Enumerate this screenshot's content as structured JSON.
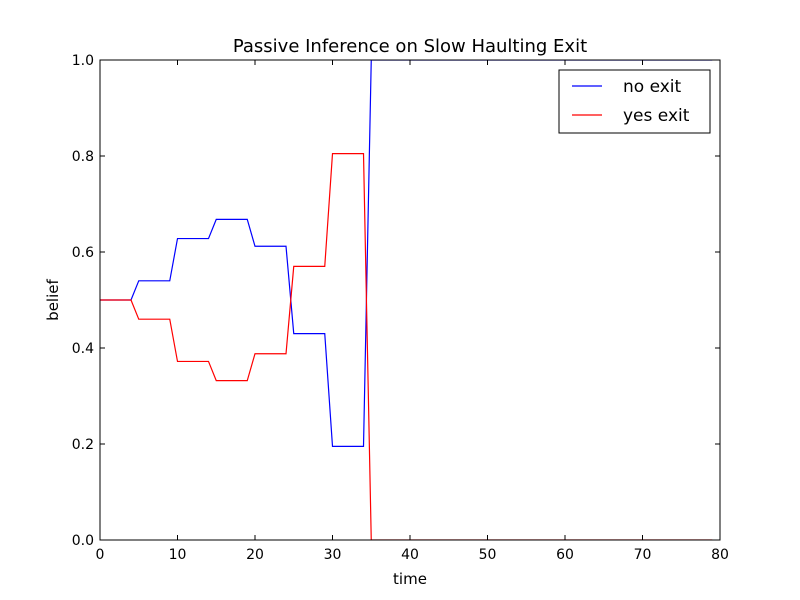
{
  "chart_data": {
    "type": "line",
    "title": "Passive Inference on Slow Haulting Exit",
    "xlabel": "time",
    "ylabel": "belief",
    "xlim": [
      0,
      80
    ],
    "ylim": [
      0,
      1.0
    ],
    "xticks": [
      0,
      10,
      20,
      30,
      40,
      50,
      60,
      70,
      80
    ],
    "yticks": [
      0.0,
      0.2,
      0.4,
      0.6,
      0.8,
      1.0
    ],
    "xtick_labels": [
      "0",
      "10",
      "20",
      "30",
      "40",
      "50",
      "60",
      "70",
      "80"
    ],
    "ytick_labels": [
      "0.0",
      "0.2",
      "0.4",
      "0.6",
      "0.8",
      "1.0"
    ],
    "grid": false,
    "legend_position": "top-right",
    "series": [
      {
        "name": "no exit",
        "color": "#0000ff",
        "points": [
          [
            0,
            0.5
          ],
          [
            4,
            0.5
          ],
          [
            5,
            0.54
          ],
          [
            9,
            0.54
          ],
          [
            10,
            0.628
          ],
          [
            14,
            0.628
          ],
          [
            15,
            0.668
          ],
          [
            19,
            0.668
          ],
          [
            20,
            0.612
          ],
          [
            24,
            0.612
          ],
          [
            25,
            0.43
          ],
          [
            29,
            0.43
          ],
          [
            30,
            0.195
          ],
          [
            34,
            0.195
          ],
          [
            35,
            1.0
          ],
          [
            79,
            1.0
          ]
        ]
      },
      {
        "name": "yes exit",
        "color": "#ff0000",
        "points": [
          [
            0,
            0.5
          ],
          [
            4,
            0.5
          ],
          [
            5,
            0.46
          ],
          [
            9,
            0.46
          ],
          [
            10,
            0.372
          ],
          [
            14,
            0.372
          ],
          [
            15,
            0.332
          ],
          [
            19,
            0.332
          ],
          [
            20,
            0.388
          ],
          [
            24,
            0.388
          ],
          [
            25,
            0.57
          ],
          [
            29,
            0.57
          ],
          [
            30,
            0.805
          ],
          [
            34,
            0.805
          ],
          [
            35,
            0.0
          ],
          [
            79,
            0.0
          ]
        ]
      }
    ]
  }
}
